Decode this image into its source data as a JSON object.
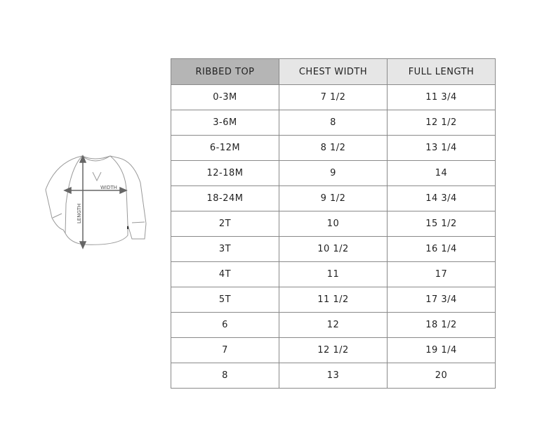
{
  "illustration": {
    "width_label": "WIDTH",
    "length_label": "LENGTH"
  },
  "table": {
    "headers": [
      "RIBBED TOP",
      "CHEST WIDTH",
      "FULL LENGTH"
    ],
    "rows": [
      [
        "0-3M",
        "7 1/2",
        "11 3/4"
      ],
      [
        "3-6M",
        "8",
        "12 1/2"
      ],
      [
        "6-12M",
        "8 1/2",
        "13 1/4"
      ],
      [
        "12-18M",
        "9",
        "14"
      ],
      [
        "18-24M",
        "9 1/2",
        "14 3/4"
      ],
      [
        "2T",
        "10",
        "15 1/2"
      ],
      [
        "3T",
        "10 1/2",
        "16 1/4"
      ],
      [
        "4T",
        "11",
        "17"
      ],
      [
        "5T",
        "11 1/2",
        "17 3/4"
      ],
      [
        "6",
        "12",
        "18 1/2"
      ],
      [
        "7",
        "12 1/2",
        "19 1/4"
      ],
      [
        "8",
        "13",
        "20"
      ]
    ]
  }
}
